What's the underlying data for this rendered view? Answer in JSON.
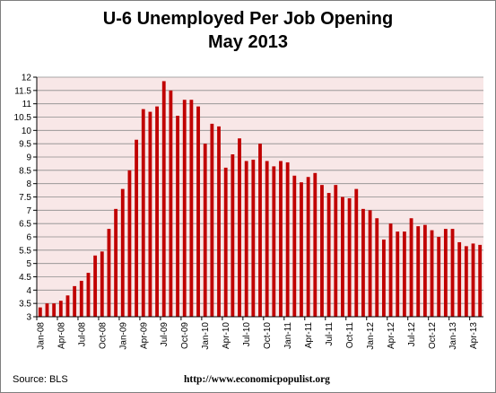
{
  "chart_data": {
    "type": "bar",
    "title": "U-6 Unemployed Per Job Opening",
    "subtitle": "May 2013",
    "xlabel": "",
    "ylabel": "",
    "ylim": [
      3,
      12
    ],
    "yticks": [
      "3",
      "3.5",
      "4",
      "4.5",
      "5",
      "5.5",
      "6",
      "6.5",
      "7",
      "7.5",
      "8",
      "8.5",
      "9",
      "9.5",
      "10",
      "10.5",
      "11",
      "11.5",
      "12"
    ],
    "xtick_labels": [
      "Jan-08",
      "Apr-08",
      "Jul-08",
      "Oct-08",
      "Jan-09",
      "Apr-09",
      "Jul-09",
      "Oct-09",
      "Jan-10",
      "Apr-10",
      "Jul-10",
      "Oct-10",
      "Jan-11",
      "Apr-11",
      "Jul-11",
      "Oct-11",
      "Jan-12",
      "Apr-12",
      "Jul-12",
      "Oct-12",
      "Jan-13",
      "Apr-13"
    ],
    "grid": true,
    "bar_color": "#c00000",
    "plot_background": "#f8e7e7",
    "categories": [
      "Jan-08",
      "Feb-08",
      "Mar-08",
      "Apr-08",
      "May-08",
      "Jun-08",
      "Jul-08",
      "Aug-08",
      "Sep-08",
      "Oct-08",
      "Nov-08",
      "Dec-08",
      "Jan-09",
      "Feb-09",
      "Mar-09",
      "Apr-09",
      "May-09",
      "Jun-09",
      "Jul-09",
      "Aug-09",
      "Sep-09",
      "Oct-09",
      "Nov-09",
      "Dec-09",
      "Jan-10",
      "Feb-10",
      "Mar-10",
      "Apr-10",
      "May-10",
      "Jun-10",
      "Jul-10",
      "Aug-10",
      "Sep-10",
      "Oct-10",
      "Nov-10",
      "Dec-10",
      "Jan-11",
      "Feb-11",
      "Mar-11",
      "Apr-11",
      "May-11",
      "Jun-11",
      "Jul-11",
      "Aug-11",
      "Sep-11",
      "Oct-11",
      "Nov-11",
      "Dec-11",
      "Jan-12",
      "Feb-12",
      "Mar-12",
      "Apr-12",
      "May-12",
      "Jun-12",
      "Jul-12",
      "Aug-12",
      "Sep-12",
      "Oct-12",
      "Nov-12",
      "Dec-12",
      "Jan-13",
      "Feb-13",
      "Mar-13",
      "Apr-13",
      "May-13"
    ],
    "values": [
      3.35,
      3.5,
      3.5,
      3.6,
      3.8,
      4.15,
      4.35,
      4.65,
      5.3,
      5.45,
      6.3,
      7.05,
      7.8,
      8.5,
      9.65,
      10.8,
      10.7,
      10.9,
      11.85,
      11.5,
      10.55,
      11.15,
      11.15,
      10.9,
      9.5,
      10.25,
      10.15,
      8.6,
      9.1,
      9.7,
      8.85,
      8.9,
      9.5,
      8.85,
      8.65,
      8.85,
      8.8,
      8.3,
      8.05,
      8.25,
      8.4,
      7.95,
      7.65,
      7.95,
      7.5,
      7.45,
      7.8,
      7.05,
      7.0,
      6.7,
      5.9,
      6.5,
      6.2,
      6.2,
      6.7,
      6.4,
      6.45,
      6.25,
      6.0,
      6.3,
      6.3,
      5.8,
      5.65,
      5.75,
      5.7
    ]
  },
  "footer": {
    "source": "Source:  BLS",
    "url": "http://www.economicpopulist.org"
  }
}
